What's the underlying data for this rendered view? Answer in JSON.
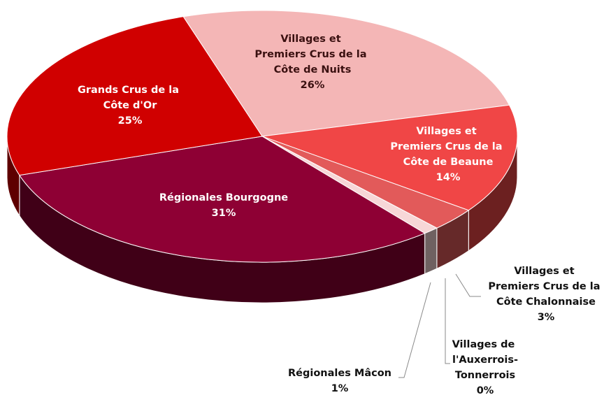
{
  "chart_data": {
    "type": "pie",
    "categories": [
      "Villages et Premiers Crus de la Côte de Nuits",
      "Villages et Premiers Crus de la Côte de Beaune",
      "Villages et Premiers Crus de la Côte Chalonnaise",
      "Villages de l'Auxerrois-Tonnerrois",
      "Régionales Mâcon",
      "Régionales Bourgogne",
      "Grands Crus de la Côte d'Or"
    ],
    "values": [
      26,
      14,
      3,
      0,
      1,
      31,
      25
    ],
    "value_labels": [
      "26%",
      "14%",
      "3%",
      "0%",
      "1%",
      "31%",
      "25%"
    ],
    "colors": [
      "#f4b6b6",
      "#f04646",
      "#e25a5a",
      "#2b0a0a",
      "#f7d7d7",
      "#8e0034",
      "#d00000"
    ]
  }
}
